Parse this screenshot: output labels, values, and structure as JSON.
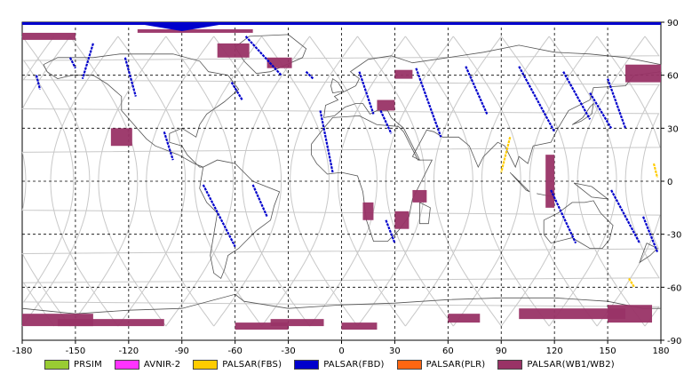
{
  "map": {
    "lon_range": [
      -180,
      180
    ],
    "lat_range": [
      -90,
      90
    ],
    "x_ticks": [
      "-180",
      "-150",
      "-120",
      "-90",
      "-60",
      "-30",
      "0",
      "30",
      "60",
      "90",
      "120",
      "150",
      "180"
    ],
    "y_ticks": [
      "90",
      "60",
      "30",
      "0",
      "-30",
      "-60",
      "-90"
    ],
    "grid_step_deg": 30,
    "colors": {
      "PRSIM": "#99cc33",
      "AVNIR-2": "#ff33ff",
      "PALSAR(FBS)": "#ffcc00",
      "PALSAR(FBD)": "#0000cc",
      "PALSAR(PLR)": "#ff6611",
      "PALSAR(WB1/WB2)": "#993366"
    }
  },
  "legend": [
    {
      "label": "PRSIM",
      "color": "#99cc33"
    },
    {
      "label": "AVNIR-2",
      "color": "#ff33ff"
    },
    {
      "label": "PALSAR(FBS)",
      "color": "#ffcc00"
    },
    {
      "label": "PALSAR(FBD)",
      "color": "#0000cc"
    },
    {
      "label": "PALSAR(PLR)",
      "color": "#ff6611"
    },
    {
      "label": "PALSAR(WB1/WB2)",
      "color": "#993366"
    }
  ],
  "observations": {
    "PALSAR(FBD)": [
      [
        [
          -172,
          60
        ],
        [
          -170,
          52
        ]
      ],
      [
        [
          -153,
          70
        ],
        [
          -150,
          64
        ]
      ],
      [
        [
          -140,
          78
        ],
        [
          -146,
          58
        ]
      ],
      [
        [
          -122,
          70
        ],
        [
          -116,
          48
        ]
      ],
      [
        [
          -100,
          28
        ],
        [
          -95,
          12
        ]
      ],
      [
        [
          -78,
          -2
        ],
        [
          -60,
          -37
        ]
      ],
      [
        [
          -50,
          -2
        ],
        [
          -42,
          -20
        ]
      ],
      [
        [
          -54,
          82
        ],
        [
          -34,
          60
        ]
      ],
      [
        [
          -20,
          62
        ],
        [
          -16,
          58
        ]
      ],
      [
        [
          -62,
          56
        ],
        [
          -56,
          46
        ]
      ],
      [
        [
          10,
          62
        ],
        [
          18,
          38
        ]
      ],
      [
        [
          -12,
          40
        ],
        [
          -5,
          5
        ]
      ],
      [
        [
          22,
          40
        ],
        [
          28,
          27
        ]
      ],
      [
        [
          42,
          64
        ],
        [
          56,
          25
        ]
      ],
      [
        [
          70,
          65
        ],
        [
          82,
          38
        ]
      ],
      [
        [
          100,
          65
        ],
        [
          120,
          28
        ]
      ],
      [
        [
          125,
          62
        ],
        [
          140,
          35
        ]
      ],
      [
        [
          140,
          50
        ],
        [
          152,
          30
        ]
      ],
      [
        [
          150,
          58
        ],
        [
          160,
          30
        ]
      ],
      [
        [
          118,
          -5
        ],
        [
          132,
          -35
        ]
      ],
      [
        [
          152,
          -5
        ],
        [
          168,
          -35
        ]
      ],
      [
        [
          170,
          -20
        ],
        [
          178,
          -40
        ]
      ],
      [
        [
          25,
          -22
        ],
        [
          30,
          -35
        ]
      ]
    ],
    "PALSAR(FBS)": [
      [
        [
          95,
          25
        ],
        [
          90,
          5
        ]
      ],
      [
        [
          176,
          10
        ],
        [
          178,
          2
        ]
      ],
      [
        [
          162,
          -55
        ],
        [
          165,
          -60
        ]
      ]
    ],
    "PALSAR(WB1/WB2)": [
      [
        [
          -180,
          84
        ],
        [
          -150,
          80
        ]
      ],
      [
        [
          -115,
          86
        ],
        [
          -50,
          84
        ]
      ],
      [
        [
          -70,
          78
        ],
        [
          -52,
          70
        ]
      ],
      [
        [
          -42,
          70
        ],
        [
          -28,
          64
        ]
      ],
      [
        [
          30,
          63
        ],
        [
          40,
          58
        ]
      ],
      [
        [
          20,
          46
        ],
        [
          30,
          40
        ]
      ],
      [
        [
          160,
          66
        ],
        [
          180,
          56
        ]
      ],
      [
        [
          100,
          -72
        ],
        [
          160,
          -78
        ]
      ],
      [
        [
          -130,
          30
        ],
        [
          -118,
          20
        ]
      ],
      [
        [
          12,
          -12
        ],
        [
          18,
          -22
        ]
      ],
      [
        [
          30,
          -17
        ],
        [
          38,
          -27
        ]
      ],
      [
        [
          60,
          -75
        ],
        [
          78,
          -80
        ]
      ],
      [
        [
          -180,
          -75
        ],
        [
          -140,
          -82
        ]
      ],
      [
        [
          -160,
          -78
        ],
        [
          -100,
          -82
        ]
      ],
      [
        [
          -40,
          -78
        ],
        [
          -10,
          -82
        ]
      ],
      [
        [
          120,
          -15
        ],
        [
          115,
          15
        ]
      ],
      [
        [
          40,
          -5
        ],
        [
          48,
          -12
        ]
      ],
      [
        [
          0,
          -80
        ],
        [
          20,
          -84
        ]
      ],
      [
        [
          -60,
          -80
        ],
        [
          -30,
          -84
        ]
      ],
      [
        [
          150,
          -70
        ],
        [
          175,
          -80
        ]
      ]
    ]
  }
}
